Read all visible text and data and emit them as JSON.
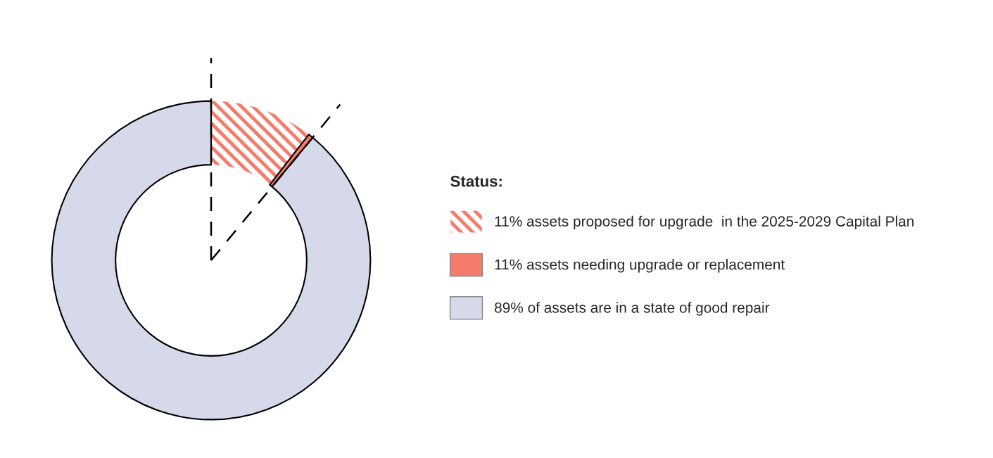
{
  "chart_data": {
    "type": "donut",
    "categories": [
      "11% assets proposed for upgrade  in the 2025-2029 Capital Plan",
      "11% assets needing upgrade or replacement",
      "89% of assets are in a state of good repair"
    ],
    "values": [
      10.5,
      0.5,
      89
    ],
    "colors": [
      "#f47c6c",
      "#f47c6c",
      "#d6d9ea"
    ],
    "legend_title": "Status:",
    "legend": "right"
  }
}
